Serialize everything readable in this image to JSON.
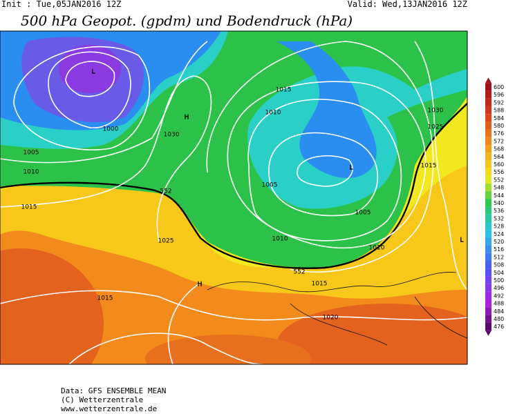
{
  "header": {
    "init": "Init : Tue,05JAN2016 12Z",
    "valid": "Valid: Wed,13JAN2016 12Z",
    "title": "500 hPa Geopot. (gpdm) und Bodendruck (hPa)"
  },
  "map_labels": [
    "L",
    "L",
    "H",
    "H",
    "L",
    "1000",
    "1005",
    "1010",
    "1015",
    "1030",
    "552",
    "1025",
    "1015",
    "1010",
    "1015",
    "1005",
    "1010",
    "1030",
    "1025",
    "1015",
    "1005",
    "1010",
    "552",
    "1015",
    "1020"
  ],
  "legend": {
    "labels": [
      600,
      596,
      592,
      588,
      584,
      580,
      576,
      572,
      568,
      564,
      560,
      556,
      552,
      548,
      544,
      540,
      536,
      532,
      528,
      524,
      520,
      516,
      512,
      508,
      504,
      500,
      496,
      492,
      488,
      484,
      480,
      476
    ]
  },
  "footer": {
    "lines": [
      "Data: GFS ENSEMBLE MEAN",
      "(C) Wetterzentrale",
      "www.wetterzentrale.de"
    ]
  }
}
